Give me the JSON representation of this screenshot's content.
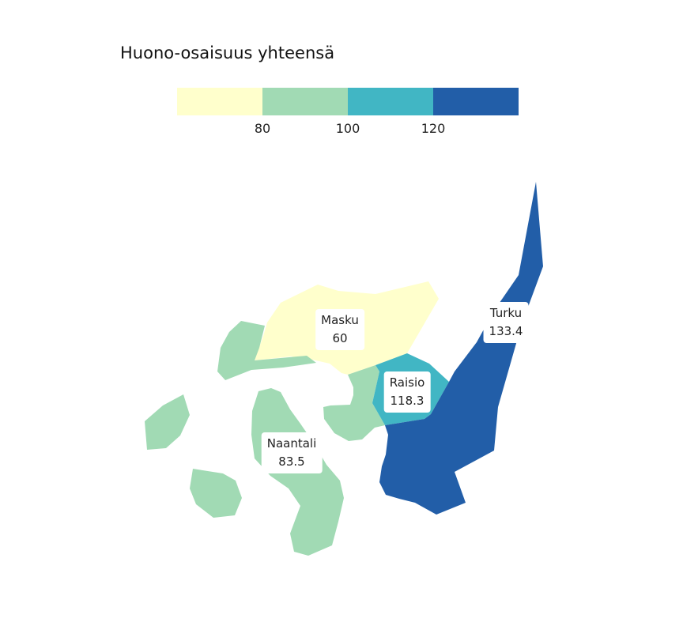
{
  "title": "Huono-osaisuus yhteensä",
  "legend": {
    "colors": [
      "#ffffcc",
      "#a1dab4",
      "#41b6c4",
      "#225ea8"
    ],
    "ticks": [
      "80",
      "100",
      "120"
    ]
  },
  "regions": [
    {
      "id": "masku",
      "name": "Masku",
      "value": "60",
      "color": "#ffffcc"
    },
    {
      "id": "naantali",
      "name": "Naantali",
      "value": "83.5",
      "color": "#a1dab4"
    },
    {
      "id": "raisio",
      "name": "Raisio",
      "value": "118.3",
      "color": "#41b6c4"
    },
    {
      "id": "turku",
      "name": "Turku",
      "value": "133.4",
      "color": "#225ea8"
    }
  ]
}
